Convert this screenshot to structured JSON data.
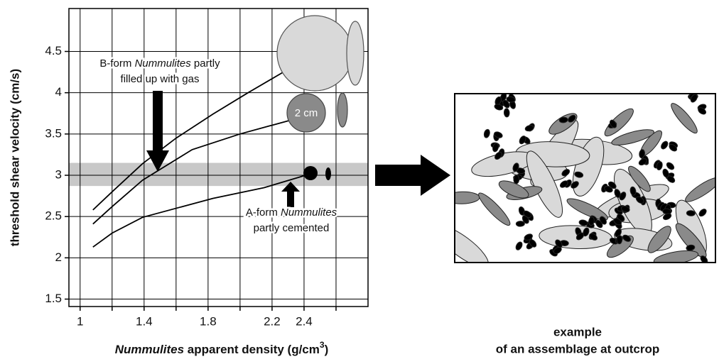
{
  "chart_data": {
    "type": "line",
    "x_label": [
      {
        "text": "Nummulites",
        "italic": true
      },
      {
        "text": " apparent density (g/cm"
      },
      {
        "text": "3",
        "sup": true
      },
      {
        "text": ")"
      }
    ],
    "y_label": "threshold shear velocity (cm/s)",
    "xlim": [
      0.93,
      2.8
    ],
    "ylim": [
      1.41,
      5.02
    ],
    "xticks": [
      1,
      1.4,
      1.8,
      2.2,
      2.4
    ],
    "x_minor_ticks": [
      1.2,
      1.6,
      2.0,
      2.6
    ],
    "yticks": [
      1.5,
      2,
      2.5,
      3,
      3.5,
      4,
      4.5
    ],
    "grid": true,
    "highlight_band": [
      2.87,
      3.15
    ],
    "band_color": "#c8c8c8",
    "series": [
      {
        "color": "#000000",
        "x": [
          1.08,
          1.2,
          1.39,
          1.6,
          1.83,
          2.05,
          2.28
        ],
        "values": [
          2.58,
          2.8,
          3.14,
          3.45,
          3.74,
          4.0,
          4.26
        ]
      },
      {
        "color": "#000000",
        "x": [
          1.08,
          1.2,
          1.39,
          1.7,
          2.0,
          2.32
        ],
        "values": [
          2.41,
          2.62,
          2.94,
          3.31,
          3.5,
          3.67
        ]
      },
      {
        "color": "#000000",
        "x": [
          1.08,
          1.2,
          1.39,
          1.83,
          2.15,
          2.41
        ],
        "values": [
          2.13,
          2.3,
          2.49,
          2.72,
          2.85,
          3.0
        ]
      }
    ],
    "annotations": [
      {
        "lines": [
          [
            {
              "text": "B-form "
            },
            {
              "text": "Nummulites",
              "italic": true
            },
            {
              "text": " partly"
            }
          ],
          [
            {
              "text": "filled up with gas"
            }
          ]
        ]
      },
      {
        "lines": [
          [
            {
              "text": "A-form "
            },
            {
              "text": "Nummulites",
              "italic": true
            }
          ],
          [
            {
              "text": "partly cemented"
            }
          ]
        ]
      }
    ],
    "scale_label": "2 cm",
    "caption": [
      "example",
      "of an assemblage at outcrop"
    ]
  }
}
